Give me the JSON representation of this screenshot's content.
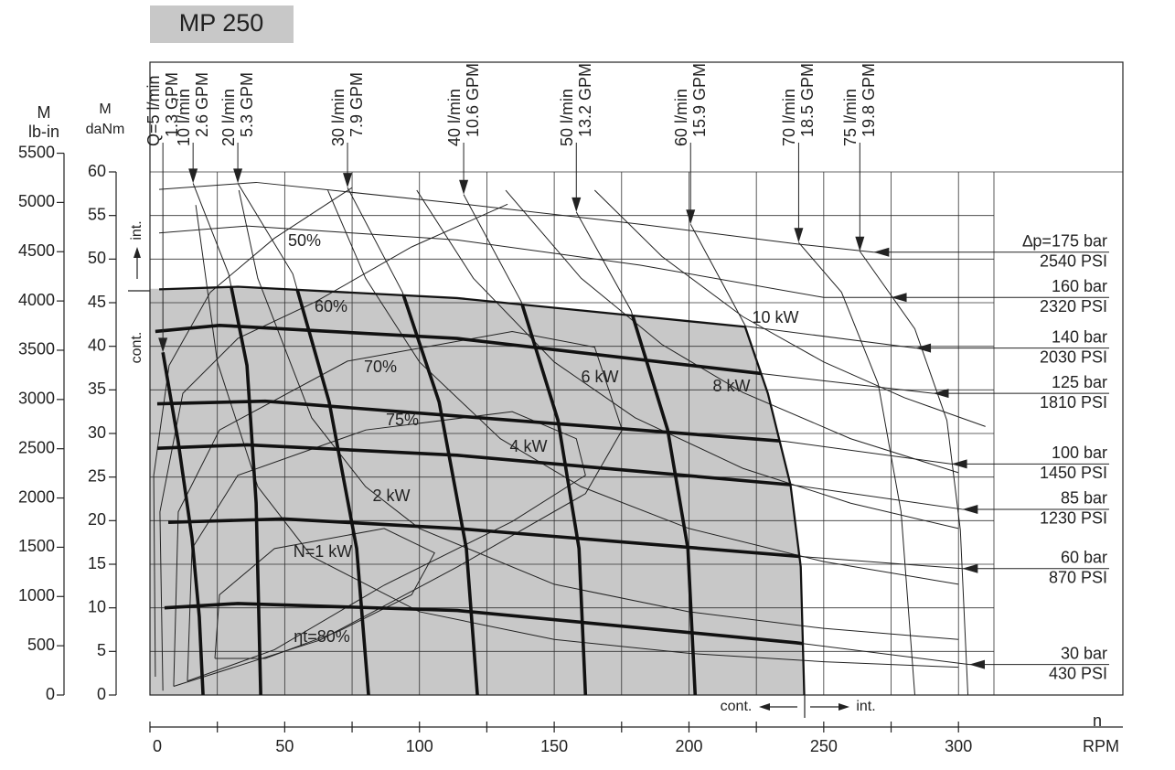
{
  "chart_data": {
    "type": "line",
    "title": "MP 250",
    "x_axis_label": "n",
    "x_unit": "RPM",
    "y_axis_label": "M",
    "y_unit": "daNm",
    "y2_axis_label": "M",
    "y2_unit": "lb-in",
    "xlim": [
      0,
      361
    ],
    "xticks": [
      0,
      50,
      100,
      150,
      200,
      250,
      300
    ],
    "x_minor_ticks": [
      25,
      75,
      125,
      175,
      225,
      275
    ],
    "ylim": [
      0,
      60
    ],
    "yticks": [
      0,
      5,
      10,
      15,
      20,
      25,
      30,
      35,
      40,
      45,
      50,
      55,
      60
    ],
    "y2lim": [
      0,
      5310
    ],
    "y2ticks": [
      0,
      500,
      1000,
      1500,
      2000,
      2500,
      3000,
      3500,
      4000,
      4500,
      5000,
      5500
    ],
    "grid": true,
    "color": "#222222",
    "region_color": "#c8c8c8",
    "continuous_label": "cont.",
    "intermittent_label": "int.",
    "continuous_limit": {
      "x": [
        0,
        3.4,
        32.6,
        114,
        221,
        229.5,
        237.9,
        241.7,
        243
      ],
      "values": [
        46.6,
        46.6,
        46.9,
        45.6,
        42.3,
        34.6,
        24.1,
        14.7,
        0
      ]
    },
    "pressure_curves": [
      {
        "name": "∆p=175 bar",
        "psi": "2540 PSI",
        "x": [
          3.4,
          39.4,
          114,
          182,
          241,
          268.5
        ],
        "values": [
          58.0,
          58.8,
          56.4,
          54.0,
          51.7,
          50.8
        ]
      },
      {
        "name": "160 bar",
        "psi": "2320 PSI",
        "x": [
          3.4,
          36,
          114,
          182,
          250,
          275
        ],
        "values": [
          53.0,
          53.8,
          52.2,
          49.3,
          45.6,
          45.6
        ]
      },
      {
        "name": "140 bar",
        "psi": "2030 PSI",
        "x": [
          3.4,
          32.6,
          114,
          221,
          284
        ],
        "values": [
          46.6,
          46.9,
          45.6,
          42.3,
          39.8
        ]
      },
      {
        "name": "125 bar",
        "psi": "1810 PSI",
        "x": [
          2,
          25.8,
          114,
          226,
          290.6
        ],
        "values": [
          41.7,
          42.4,
          40.9,
          36.9,
          34.6
        ]
      },
      {
        "name": "100 bar",
        "psi": "1450 PSI",
        "x": [
          2.7,
          42.8,
          114,
          235.6,
          297.4
        ],
        "values": [
          33.4,
          33.7,
          32.0,
          29.1,
          26.5
        ]
      },
      {
        "name": "85 bar",
        "psi": "1230 PSI",
        "x": [
          2.7,
          36,
          114,
          238.3,
          301.4
        ],
        "values": [
          28.3,
          28.7,
          27.5,
          24.1,
          21.3
        ]
      },
      {
        "name": "60 bar",
        "psi": "870 PSI",
        "x": [
          6.8,
          49.6,
          114,
          241,
          301.4
        ],
        "values": [
          19.8,
          20.2,
          19.1,
          15.9,
          14.5
        ]
      },
      {
        "name": "30 bar",
        "psi": "430 PSI",
        "x": [
          5.4,
          32.6,
          114,
          239.6,
          304
        ],
        "values": [
          10.0,
          10.5,
          9.7,
          6.0,
          3.5
        ]
      }
    ],
    "flow_curves": [
      {
        "name": "Q=5 l/min",
        "gpm": "1.3 GPM",
        "x": [
          4.8,
          10.5,
          15.6,
          18.3,
          19.7
        ],
        "values": [
          39.3,
          29.0,
          18.0,
          9.0,
          0
        ]
      },
      {
        "name": "10 l/min",
        "gpm": "2.6 GPM",
        "x": [
          16.0,
          29.2,
          36.0,
          39.4,
          41.1
        ],
        "values": [
          58.7,
          48.3,
          37.8,
          22.0,
          0
        ]
      },
      {
        "name": "20 l/min",
        "gpm": "5.3 GPM",
        "x": [
          32.6,
          53.0,
          66.5,
          76.7,
          81.1
        ],
        "values": [
          58.7,
          48.3,
          33.6,
          16.8,
          0
        ]
      },
      {
        "name": "30 l/min",
        "gpm": "7.9 GPM",
        "x": [
          73.3,
          93.7,
          107.3,
          117.4,
          121.5
        ],
        "values": [
          58.2,
          46.2,
          33.6,
          16.8,
          0
        ]
      },
      {
        "name": "40 l/min",
        "gpm": "10.6 GPM",
        "x": [
          116.4,
          137.8,
          151.4,
          159.2,
          161.6
        ],
        "values": [
          57.4,
          45.1,
          31.5,
          16.8,
          0
        ]
      },
      {
        "name": "50 l/min",
        "gpm": "13.2 GPM",
        "x": [
          158.2,
          178.5,
          192.1,
          199.6,
          202.3
        ],
        "values": [
          55.4,
          44.1,
          30.4,
          16.8,
          0
        ]
      },
      {
        "name": "60 l/min",
        "gpm": "15.9 GPM",
        "x": [
          200.6,
          221.0,
          229.5,
          237.9,
          241.7,
          243.0
        ],
        "values": [
          54.0,
          42.3,
          34.6,
          24.1,
          14.7,
          0
        ]
      },
      {
        "name": "70 l/min",
        "gpm": "18.5 GPM",
        "x": [
          240.7,
          256.6,
          270.2,
          278.7,
          283.8
        ],
        "values": [
          51.9,
          46.2,
          35.7,
          21.0,
          0
        ]
      },
      {
        "name": "75 l/min",
        "gpm": "19.8 GPM",
        "x": [
          263.4,
          283.8,
          295.7,
          300.7,
          303.5
        ],
        "values": [
          50.9,
          42.0,
          31.5,
          18.9,
          0
        ]
      }
    ],
    "power_curves": [
      {
        "name": "N=1 kW",
        "x": [
          17,
          25,
          40,
          60,
          100,
          150,
          200,
          250,
          300
        ],
        "values": [
          56.2,
          38.2,
          23.9,
          15.9,
          9.55,
          6.37,
          4.78,
          3.82,
          3.18
        ]
      },
      {
        "name": "2 kW",
        "x": [
          33,
          40,
          60,
          80,
          100,
          150,
          200,
          250,
          300
        ],
        "values": [
          57.9,
          47.8,
          31.8,
          23.9,
          19.1,
          12.7,
          9.55,
          7.64,
          6.37
        ]
      },
      {
        "name": "4 kW",
        "x": [
          66,
          80,
          100,
          130,
          160,
          200,
          250,
          300
        ],
        "values": [
          57.9,
          47.8,
          38.2,
          29.4,
          23.9,
          19.1,
          15.3,
          12.7
        ]
      },
      {
        "name": "6 kW",
        "x": [
          99,
          120,
          150,
          180,
          220,
          260,
          300
        ],
        "values": [
          57.9,
          47.8,
          38.2,
          31.8,
          26.0,
          22.0,
          19.1
        ]
      },
      {
        "name": "8 kW",
        "x": [
          132,
          160,
          190,
          220,
          260,
          300
        ],
        "values": [
          57.9,
          47.8,
          40.2,
          34.7,
          29.4,
          25.5
        ]
      },
      {
        "name": "10 kW",
        "x": [
          165,
          190,
          220,
          250,
          280,
          310
        ],
        "values": [
          57.9,
          50.3,
          43.4,
          38.2,
          34.1,
          30.8
        ]
      }
    ],
    "efficiency_curves": [
      {
        "name": "50%",
        "x": [
          2.0,
          1.4,
          7.1,
          22.4,
          46.2,
          75.0
        ],
        "values": [
          2.1,
          25.2,
          37.8,
          46.2,
          52.4,
          58.2
        ]
      },
      {
        "name": "60%",
        "x": [
          4.8,
          3.7,
          12.2,
          32.6,
          61.4,
          97.1,
          132.7
        ],
        "values": [
          0.5,
          21.0,
          34.6,
          40.9,
          45.1,
          51.4,
          56.3
        ]
      },
      {
        "name": "70%",
        "x": [
          8.8,
          10.5,
          25.8,
          73.3,
          134.4,
          165.0,
          175.2,
          161.6,
          114.1,
          63.1,
          8.8
        ],
        "values": [
          1.0,
          21.0,
          30.4,
          38.3,
          41.7,
          39.9,
          30.4,
          23.1,
          14.7,
          6.3,
          1.0
        ]
      },
      {
        "name": "75%",
        "x": [
          13.9,
          15.6,
          32.6,
          80.1,
          134.4,
          158.2,
          161.6,
          134.4,
          86.9,
          46.2,
          13.9
        ],
        "values": [
          1.6,
          16.8,
          25.2,
          30.4,
          32.5,
          29.4,
          25.2,
          19.9,
          12.6,
          5.2,
          1.6
        ]
      },
      {
        "name": "ηt=80%",
        "x": [
          24.1,
          25.8,
          46.2,
          86.9,
          105.6,
          97.1,
          69.9,
          42.8,
          24.1
        ],
        "values": [
          4.2,
          11.5,
          16.8,
          19.1,
          16.3,
          11.5,
          7.3,
          4.2,
          4.2
        ]
      }
    ]
  }
}
